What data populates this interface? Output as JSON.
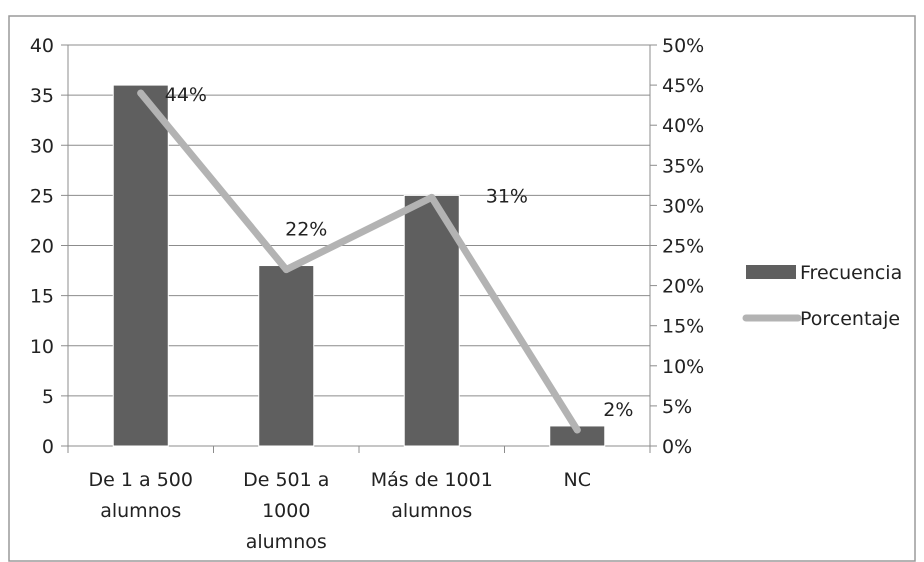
{
  "chart_data": {
    "type": "bar",
    "categories": [
      [
        "De 1 a 500",
        "alumnos"
      ],
      [
        "De 501 a",
        "1000",
        "alumnos"
      ],
      [
        "Más de 1001",
        "alumnos"
      ],
      [
        "NC"
      ]
    ],
    "series": [
      {
        "name": "Frecuencia",
        "type": "bar",
        "axis": "left",
        "color": "#5f5f5f",
        "values": [
          36,
          18,
          25,
          2
        ]
      },
      {
        "name": "Porcentaje",
        "type": "line",
        "axis": "right",
        "color": "#b3b3b3",
        "values": [
          44,
          22,
          31,
          2
        ],
        "value_unit": "%",
        "data_labels": [
          "44%",
          "22%",
          "31%",
          "2%"
        ]
      }
    ],
    "left_axis": {
      "min": 0,
      "max": 40,
      "step": 5,
      "tick_labels": [
        "0",
        "5",
        "10",
        "15",
        "20",
        "25",
        "30",
        "35",
        "40"
      ]
    },
    "right_axis": {
      "min": 0,
      "max": 50,
      "step": 5,
      "tick_labels": [
        "0%",
        "5%",
        "10%",
        "15%",
        "20%",
        "25%",
        "30%",
        "35%",
        "40%",
        "45%",
        "50%"
      ]
    },
    "title": "",
    "xlabel": "",
    "ylabel": "",
    "grid": true,
    "legend_position": "right"
  }
}
